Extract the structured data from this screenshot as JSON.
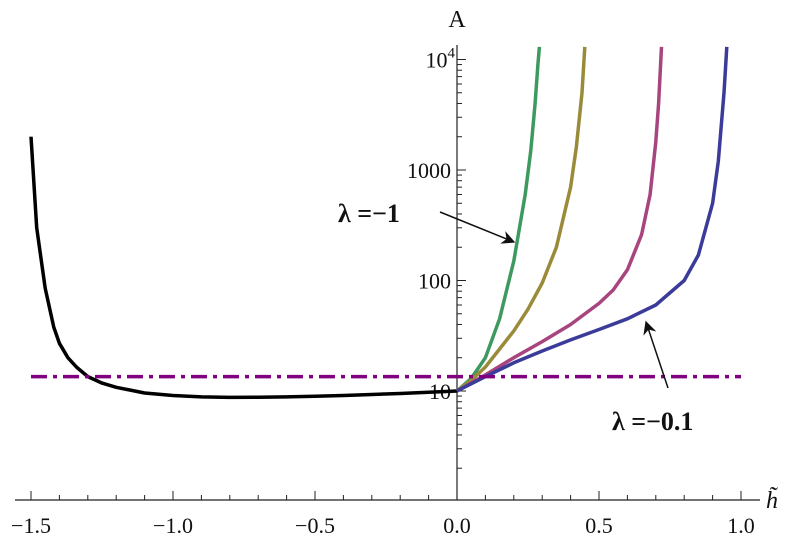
{
  "chart_data": {
    "type": "line",
    "title": "",
    "xlabel": "h̃",
    "ylabel": "A",
    "xlim": [
      -1.5,
      1.0
    ],
    "ylim_log10": [
      0.45,
      4.2
    ],
    "y_scale": "log",
    "grid": false,
    "x_ticks": [
      {
        "value": -1.5,
        "label": "−1.5"
      },
      {
        "value": -1.0,
        "label": "−1.0"
      },
      {
        "value": -0.5,
        "label": "−0.5"
      },
      {
        "value": 0.0,
        "label": "0.0"
      },
      {
        "value": 0.5,
        "label": "0.5"
      },
      {
        "value": 1.0,
        "label": "1.0"
      }
    ],
    "y_ticks": [
      {
        "value": 10,
        "label": "10",
        "sup": ""
      },
      {
        "value": 100,
        "label": "100",
        "sup": ""
      },
      {
        "value": 1000,
        "label": "1000",
        "sup": ""
      },
      {
        "value": 10000,
        "label": "10",
        "sup": "4"
      }
    ],
    "series": [
      {
        "color": "#000000",
        "style": "solid",
        "x": [
          -1.5,
          -1.48,
          -1.45,
          -1.42,
          -1.4,
          -1.37,
          -1.34,
          -1.3,
          -1.25,
          -1.2,
          -1.1,
          -1.0,
          -0.9,
          -0.8,
          -0.7,
          -0.6,
          -0.5,
          -0.4,
          -0.3,
          -0.2,
          -0.1,
          0.0
        ],
        "y": [
          2000,
          300,
          85,
          38,
          27,
          20,
          16.5,
          13.5,
          11.8,
          10.8,
          9.6,
          9.1,
          8.85,
          8.75,
          8.78,
          8.85,
          8.95,
          9.1,
          9.3,
          9.5,
          9.75,
          10
        ]
      },
      {
        "color": "#3c9a5f",
        "style": "solid",
        "x": [
          0.0,
          0.05,
          0.1,
          0.15,
          0.2,
          0.24,
          0.26,
          0.275,
          0.285,
          0.29
        ],
        "y": [
          10,
          13,
          20,
          45,
          150,
          600,
          1500,
          4000,
          9000,
          13000
        ]
      },
      {
        "color": "#9a8b3a",
        "style": "solid",
        "x": [
          0.0,
          0.05,
          0.1,
          0.15,
          0.2,
          0.25,
          0.3,
          0.35,
          0.4,
          0.42,
          0.44,
          0.45
        ],
        "y": [
          10,
          12.5,
          16.5,
          24,
          35,
          55,
          95,
          200,
          700,
          1600,
          5000,
          13000
        ]
      },
      {
        "color": "#a8457e",
        "style": "solid",
        "x": [
          0.0,
          0.1,
          0.2,
          0.3,
          0.4,
          0.5,
          0.55,
          0.6,
          0.65,
          0.68,
          0.7,
          0.71,
          0.72
        ],
        "y": [
          10,
          14,
          20,
          28,
          40,
          62,
          82,
          125,
          260,
          600,
          1800,
          4000,
          13000
        ]
      },
      {
        "color": "#3b3b9a",
        "style": "solid",
        "x": [
          0.0,
          0.1,
          0.2,
          0.3,
          0.4,
          0.5,
          0.6,
          0.7,
          0.8,
          0.85,
          0.9,
          0.92,
          0.94,
          0.95
        ],
        "y": [
          10,
          13.5,
          18,
          23,
          29,
          36,
          45,
          60,
          100,
          170,
          500,
          1200,
          5000,
          13000
        ]
      },
      {
        "color": "#800080",
        "style": "dashdot",
        "x": [
          -1.5,
          1.0
        ],
        "y": [
          13.5,
          13.5
        ]
      }
    ],
    "annotations": [
      {
        "text": "λ =−1",
        "arrow_from": [
          0.03,
          570
        ],
        "arrow_to": [
          0.21,
          330
        ]
      },
      {
        "text": "λ =−0.1",
        "arrow_from": [
          0.74,
          16
        ],
        "arrow_to": [
          0.67,
          40
        ]
      }
    ]
  }
}
